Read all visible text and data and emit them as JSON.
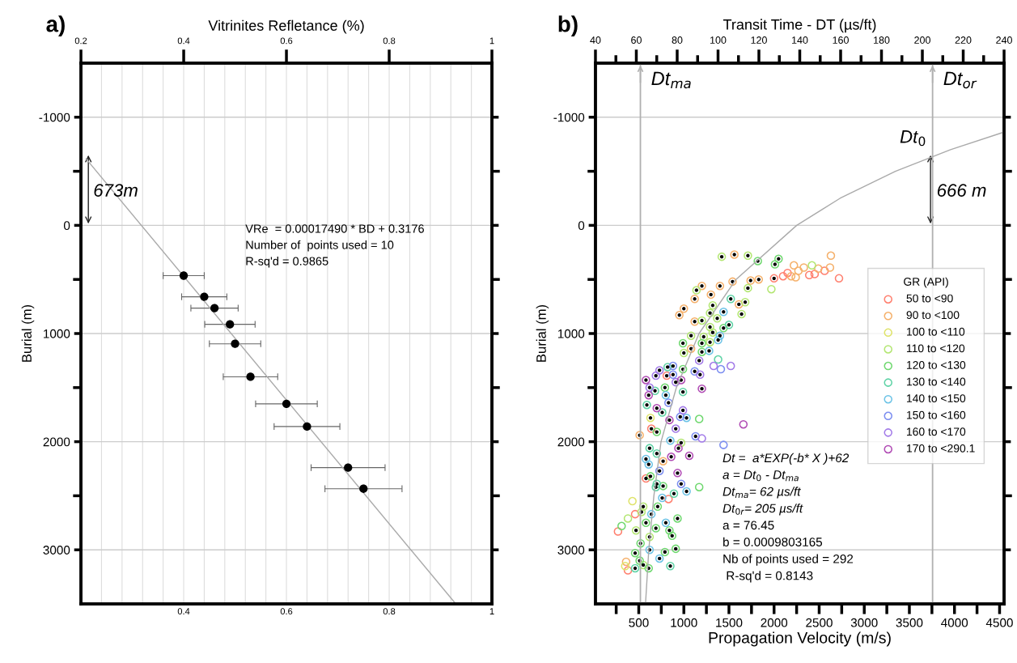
{
  "chart_data": [
    {
      "type": "scatter",
      "title": "a)",
      "x2label": "Vitrinites Refletance (%)",
      "ylabel": "Burial (m)",
      "xlim": [
        0.2,
        1
      ],
      "xticks": [
        {
          "value": 0.2,
          "label": null
        },
        {
          "value": 0.24,
          "label": null
        },
        {
          "value": 0.28,
          "label": null
        },
        {
          "value": 0.32,
          "label": null
        },
        {
          "value": 0.36,
          "label": null
        },
        0.4,
        {
          "value": 0.44,
          "label": null
        },
        {
          "value": 0.48,
          "label": null
        },
        {
          "value": 0.52,
          "label": null
        },
        {
          "value": 0.56,
          "label": null
        },
        0.6,
        {
          "value": 0.64,
          "label": null
        },
        {
          "value": 0.68,
          "label": null
        },
        {
          "value": 0.72,
          "label": null
        },
        {
          "value": 0.76,
          "label": null
        },
        0.8,
        {
          "value": 0.84,
          "label": null
        },
        {
          "value": 0.88,
          "label": null
        },
        {
          "value": 0.92,
          "label": null
        },
        {
          "value": 0.96,
          "label": null
        },
        1
      ],
      "x2lim": [
        0.2,
        1
      ],
      "x2ticks": [
        0.2,
        0.4,
        0.6,
        0.8,
        1
      ],
      "ylim": [
        3500,
        -1500
      ],
      "yticks": [
        -1000,
        {
          "value": -500,
          "label": null
        },
        0,
        {
          "value": 500,
          "label": null
        },
        1000,
        {
          "value": 1500,
          "label": null
        },
        2000,
        {
          "value": 2500,
          "label": null
        },
        3000
      ],
      "grid": true,
      "marker": "circle",
      "series": [
        {
          "type": "scatter",
          "color": "#000000",
          "x": [
            0.4,
            0.44,
            0.46,
            0.49,
            0.5,
            0.53,
            0.6,
            0.64,
            0.72,
            0.75
          ],
          "values": [
            465,
            660,
            765,
            915,
            1095,
            1400,
            1650,
            1860,
            2240,
            2435
          ],
          "xerrors": [
            0.04,
            0.044,
            0.046,
            0.049,
            0.05,
            0.053,
            0.06,
            0.064,
            0.072,
            0.075
          ]
        },
        {
          "type": "line",
          "marker": "none",
          "color": "#aaaaaa",
          "x": [
            0.21,
            0.929
          ],
          "values": [
            -615,
            3496
          ]
        }
      ],
      "annotations": [
        "673m",
        "VRe  = 0.00017490 * BD + 0.3176",
        "Number of  points used = 10",
        "R-sq'd = 0.9865"
      ]
    },
    {
      "type": "scatter",
      "title": "b)",
      "x2label": "Transit Time - DT (µs/ft)",
      "xlabel": "Propagation Velocity (m/s)",
      "ylabel": "Burial (m)",
      "xlim": [
        20,
        4550
      ],
      "xticks": [
        {
          "value": 250,
          "label": null
        },
        500,
        {
          "value": 750,
          "label": null
        },
        1000,
        {
          "value": 1250,
          "label": null
        },
        1500,
        {
          "value": 1750,
          "label": null
        },
        2000,
        {
          "value": 2250,
          "label": null
        },
        2500,
        {
          "value": 2750,
          "label": null
        },
        3000,
        {
          "value": 3250,
          "label": null
        },
        3500,
        {
          "value": 3750,
          "label": null
        },
        4000,
        {
          "value": 4250,
          "label": null
        },
        4500
      ],
      "x2lim": [
        40,
        240
      ],
      "x2ticks": [
        40,
        {
          "value": 50,
          "label": null
        },
        60,
        {
          "value": 70,
          "label": null
        },
        80,
        {
          "value": 90,
          "label": null
        },
        100,
        {
          "value": 110,
          "label": null
        },
        120,
        {
          "value": 130,
          "label": null
        },
        140,
        {
          "value": 150,
          "label": null
        },
        160,
        {
          "value": 170,
          "label": null
        },
        180,
        {
          "value": 190,
          "label": null
        },
        200,
        {
          "value": 210,
          "label": null
        },
        220,
        {
          "value": 230,
          "label": null
        },
        240
      ],
      "ylim": [
        3500,
        -1500
      ],
      "yticks": [
        -1000,
        {
          "value": -500,
          "label": null
        },
        0,
        {
          "value": 500,
          "label": null
        },
        1000,
        {
          "value": 1500,
          "label": null
        },
        2000,
        {
          "value": 2500,
          "label": null
        },
        3000
      ],
      "grid": "y",
      "legend": "right",
      "legend_title": "GR (API)",
      "marker": "circle",
      "ref_lines": [
        {
          "axis": "x2",
          "value": 62,
          "label": "Dt$_{ma}$",
          "color": "#b0b0b0"
        },
        {
          "axis": "x2",
          "value": 205,
          "label": "Dt$_{or}$",
          "color": "#b0b0b0"
        }
      ],
      "series": [
        {
          "type": "line",
          "marker": "none",
          "axis": "x2",
          "color": "#aaaaaa",
          "x": [
            64.5,
            66.1,
            68.6,
            72.1,
            79.6,
            90.7,
            108.8,
            138.5,
            159.7,
            186.8,
            213.8,
            239.6
          ],
          "values": [
            3500,
            3000,
            2500,
            2000,
            1500,
            1000,
            500,
            0,
            -250,
            -500,
            -700,
            -860
          ]
        },
        {
          "name": "50 to <90",
          "color": "#ff7f6e",
          "x": [
            2720,
            2560,
            2450,
            2390,
            2150,
            2100,
            830,
            460,
            270,
            380,
            2000,
            810,
            640,
            580
          ],
          "values": [
            490,
            420,
            450,
            460,
            440,
            470,
            2530,
            2670,
            2830,
            3190,
            490,
            1390,
            1880,
            2340
          ]
        },
        {
          "name": "90 to <100",
          "color": "#f5b06a",
          "x": [
            2630,
            2620,
            2490,
            2330,
            2270,
            2220,
            2240,
            2190,
            360,
            1560,
            1830,
            1740,
            1540,
            1400,
            1200,
            1120,
            1000,
            950,
            1300,
            1610,
            1120,
            1080,
            510,
            770
          ],
          "values": [
            280,
            390,
            400,
            390,
            420,
            370,
            480,
            470,
            3110,
            270,
            500,
            510,
            520,
            560,
            560,
            680,
            770,
            830,
            640,
            730,
            890,
            1140,
            1940,
            2180
          ]
        },
        {
          "name": "100 to <110",
          "color": "#dfe36a",
          "x": [
            430,
            350,
            630
          ],
          "values": [
            2550,
            3150,
            1780
          ]
        },
        {
          "name": "110 to <120",
          "color": "#b3e672",
          "x": [
            2420,
            1970,
            380,
            1420,
            1710,
            1710,
            1140,
            1680,
            1640,
            1320,
            1290,
            1370,
            1200,
            1290,
            1320,
            1220,
            1080,
            1290,
            1000,
            970,
            550,
            530,
            470,
            620,
            550
          ],
          "values": [
            370,
            590,
            2710,
            290,
            280,
            580,
            600,
            710,
            820,
            740,
            810,
            860,
            880,
            940,
            990,
            1030,
            1020,
            1080,
            1180,
            2010,
            2600,
            2650,
            2820,
            2880,
            3140
          ]
        },
        {
          "name": "120 to <130",
          "color": "#6fd86f",
          "x": [
            1170,
            1170,
            310,
            1820,
            2010,
            2050,
            1440,
            990,
            1200,
            1200,
            990,
            790,
            700,
            630,
            770,
            710,
            930,
            840,
            870,
            580,
            690,
            520,
            790,
            910,
            460,
            510,
            610
          ],
          "values": [
            1790,
            2420,
            2780,
            330,
            360,
            310,
            950,
            1090,
            1090,
            1170,
            1330,
            1500,
            1910,
            2320,
            2410,
            2600,
            2710,
            2820,
            2870,
            2750,
            2800,
            2940,
            3020,
            2990,
            3030,
            3100,
            3170
          ]
        },
        {
          "name": "130 to <140",
          "color": "#5fd3a6",
          "x": [
            1380,
            1520,
            1500,
            990,
            820,
            680,
            590,
            760,
            620,
            700,
            700,
            690,
            890,
            460,
            850
          ],
          "values": [
            1240,
            680,
            920,
            1540,
            1310,
            1530,
            1660,
            1730,
            2060,
            2110,
            2390,
            2420,
            2480,
            3170,
            3150
          ]
        },
        {
          "name": "140 to <150",
          "color": "#6cc3e6",
          "x": [
            1440,
            1400,
            1380,
            1280,
            800,
            1030,
            850,
            610,
            1030,
            760,
            640,
            800,
            620,
            730,
            580
          ],
          "values": [
            800,
            1020,
            1060,
            1160,
            1570,
            1780,
            1990,
            2210,
            2460,
            2520,
            2670,
            2750,
            3000,
            3080,
            2160
          ]
        },
        {
          "name": "150 to <160",
          "color": "#7b8df0",
          "x": [
            1410,
            1440,
            1120,
            880,
            880,
            830,
            960,
            1130,
            730,
            970
          ],
          "values": [
            1330,
            2030,
            1350,
            1300,
            1380,
            1640,
            1770,
            1950,
            2270,
            2390
          ]
        },
        {
          "name": "160 to <170",
          "color": "#a27ae8",
          "x": [
            1330,
            1520,
            1200,
            1170,
            1180,
            730,
            690,
            910,
            620,
            990,
            910
          ],
          "values": [
            1300,
            1300,
            1970,
            1250,
            1380,
            1340,
            1390,
            1450,
            1500,
            1710,
            1880
          ]
        },
        {
          "name": "170 to <290.1",
          "color": "#b04ab4",
          "x": [
            1660,
            1200,
            970,
            580,
            610,
            700,
            840,
            940,
            860,
            1060,
            930
          ],
          "values": [
            1840,
            1510,
            1430,
            1430,
            1570,
            1690,
            1800,
            2060,
            2140,
            2130,
            2290
          ]
        },
        {
          "color": "#000000",
          "x": [
            2000,
            810,
            640,
            580,
            1560,
            1830,
            1740,
            1540,
            1400,
            1200,
            1120,
            1000,
            950,
            1300,
            1610,
            1120,
            1080,
            510,
            770,
            630,
            1420,
            1710,
            1710,
            1140,
            1680,
            1640,
            1320,
            1290,
            1370,
            1200,
            1290,
            1320,
            1220,
            1080,
            1290,
            1000,
            970,
            550,
            530,
            470,
            620,
            550,
            1820,
            2010,
            2050,
            1440,
            990,
            1200,
            1200,
            990,
            790,
            700,
            630,
            770,
            710,
            930,
            840,
            870,
            580,
            690,
            520,
            790,
            910,
            460,
            510,
            610,
            1520,
            1500,
            990,
            820,
            680,
            590,
            760,
            620,
            700,
            700,
            690,
            890,
            460,
            850,
            1440,
            1400,
            1380,
            1280,
            800,
            1030,
            850,
            610,
            1030,
            760,
            640,
            800,
            620,
            730,
            580,
            1120,
            880,
            880,
            830,
            960,
            1130,
            730,
            970,
            1170,
            1180,
            730,
            690,
            910,
            620,
            990,
            910,
            1200,
            970,
            580,
            610,
            700,
            840,
            940,
            860,
            1060,
            930
          ],
          "values": [
            490,
            1390,
            1880,
            2340,
            270,
            500,
            510,
            520,
            560,
            560,
            680,
            770,
            830,
            640,
            730,
            890,
            1140,
            1940,
            2180,
            1780,
            290,
            280,
            580,
            600,
            710,
            820,
            740,
            810,
            860,
            880,
            940,
            990,
            1030,
            1020,
            1080,
            1180,
            2010,
            2600,
            2650,
            2820,
            2880,
            3140,
            330,
            360,
            310,
            950,
            1090,
            1090,
            1170,
            1330,
            1500,
            1910,
            2320,
            2410,
            2600,
            2710,
            2820,
            2870,
            2750,
            2800,
            2940,
            3020,
            2990,
            3030,
            3100,
            3170,
            680,
            920,
            1540,
            1310,
            1530,
            1660,
            1730,
            2060,
            2110,
            2390,
            2420,
            2480,
            3170,
            3150,
            800,
            1020,
            1060,
            1160,
            1570,
            1780,
            1990,
            2210,
            2460,
            2520,
            2670,
            2750,
            3000,
            3080,
            2160,
            1350,
            1300,
            1380,
            1640,
            1770,
            1950,
            2270,
            2390,
            1250,
            1380,
            1340,
            1390,
            1450,
            1500,
            1710,
            1880,
            1510,
            1430,
            1430,
            1570,
            1690,
            1800,
            2060,
            2140,
            2130,
            2290
          ]
        }
      ],
      "annotations": [
        "666 m",
        {
          "text": "Dt$_{0}$",
          "x": 3740,
          "y": -666
        },
        "Dt =  a*EXP(-b* X )+62",
        "a = Dt$_{0}$ - Dt$_{ma}$",
        "Dt$_{ma}$= 62 µs/ft",
        "Dt$_{0r}$= 205 µs/ft",
        "a = 76.45",
        "b = 0.0009803165",
        "Nb of points used = 292",
        " R-sq'd = 0.8143"
      ]
    }
  ]
}
